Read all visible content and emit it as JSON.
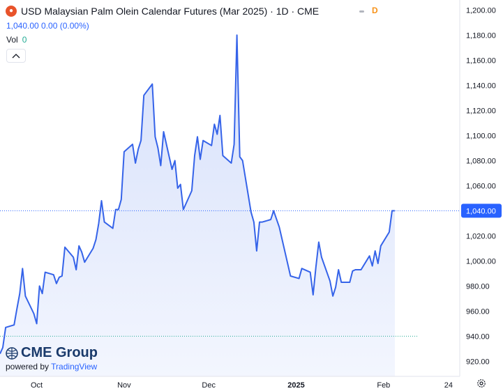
{
  "header": {
    "title": "USD Malaysian Palm Olein Calendar Futures (Mar 2025) · 1D · CME",
    "quote": "1,040.00  0.00 (0.00%)",
    "badge": "D",
    "vol_label": "Vol",
    "vol_value": "0"
  },
  "branding": {
    "name": "CME Group",
    "powered_by": "powered by",
    "provider": "TradingView"
  },
  "colors": {
    "line": "#3563e9",
    "fill_top": "#d6e0fb",
    "fill_bottom": "#f3f6fe",
    "price_tag": "#2962ff",
    "ref_line": "#2962ff",
    "base_line": "#22ab94"
  },
  "chart_data": {
    "type": "area",
    "title": "USD Malaysian Palm Olein Calendar Futures (Mar 2025)",
    "x_labels": [
      "Oct",
      "Nov",
      "Dec",
      "2025",
      "Feb",
      "24"
    ],
    "y_ticks": [
      920,
      940,
      960,
      980,
      1000,
      1020,
      1040,
      1060,
      1080,
      1100,
      1120,
      1140,
      1160,
      1180,
      1200
    ],
    "y_tick_labels": [
      "920.00",
      "940.00",
      "960.00",
      "980.00",
      "1,000.00",
      "1,020.00",
      "1,040.00",
      "1,060.00",
      "1,080.00",
      "1,100.00",
      "1,120.00",
      "1,140.00",
      "1,160.00",
      "1,180.00",
      "1,200.00"
    ],
    "ylim": [
      908,
      1208
    ],
    "last_price": 1040,
    "last_price_label": "1,040.00",
    "base_value": 940,
    "x_start": "2024-09-18",
    "x_end": "2025-02-28",
    "series": [
      {
        "values": [
          [
            "2024-09-18",
            926
          ],
          [
            "2024-09-19",
            931
          ],
          [
            "2024-09-20",
            947
          ],
          [
            "2024-09-23",
            949
          ],
          [
            "2024-09-24",
            962
          ],
          [
            "2024-09-25",
            974
          ],
          [
            "2024-09-26",
            994
          ],
          [
            "2024-09-27",
            972
          ],
          [
            "2024-09-30",
            958
          ],
          [
            "2024-10-01",
            950
          ],
          [
            "2024-10-02",
            980
          ],
          [
            "2024-10-03",
            974
          ],
          [
            "2024-10-04",
            991
          ],
          [
            "2024-10-07",
            989
          ],
          [
            "2024-10-08",
            982
          ],
          [
            "2024-10-09",
            987
          ],
          [
            "2024-10-10",
            988
          ],
          [
            "2024-10-11",
            1011
          ],
          [
            "2024-10-14",
            1003
          ],
          [
            "2024-10-15",
            993
          ],
          [
            "2024-10-16",
            1012
          ],
          [
            "2024-10-17",
            1007
          ],
          [
            "2024-10-18",
            999
          ],
          [
            "2024-10-21",
            1010
          ],
          [
            "2024-10-22",
            1017
          ],
          [
            "2024-10-23",
            1030
          ],
          [
            "2024-10-24",
            1048
          ],
          [
            "2024-10-25",
            1031
          ],
          [
            "2024-10-28",
            1026
          ],
          [
            "2024-10-29",
            1041
          ],
          [
            "2024-10-30",
            1041
          ],
          [
            "2024-10-31",
            1049
          ],
          [
            "2024-11-01",
            1087
          ],
          [
            "2024-11-04",
            1093
          ],
          [
            "2024-11-05",
            1078
          ],
          [
            "2024-11-06",
            1089
          ],
          [
            "2024-11-07",
            1096
          ],
          [
            "2024-11-08",
            1132
          ],
          [
            "2024-11-11",
            1141
          ],
          [
            "2024-11-12",
            1099
          ],
          [
            "2024-11-13",
            1090
          ],
          [
            "2024-11-14",
            1076
          ],
          [
            "2024-11-15",
            1103
          ],
          [
            "2024-11-18",
            1073
          ],
          [
            "2024-11-19",
            1080
          ],
          [
            "2024-11-20",
            1058
          ],
          [
            "2024-11-21",
            1061
          ],
          [
            "2024-11-22",
            1041
          ],
          [
            "2024-11-25",
            1056
          ],
          [
            "2024-11-26",
            1084
          ],
          [
            "2024-11-27",
            1099
          ],
          [
            "2024-11-28",
            1081
          ],
          [
            "2024-11-29",
            1096
          ],
          [
            "2024-12-02",
            1092
          ],
          [
            "2024-12-03",
            1109
          ],
          [
            "2024-12-04",
            1101
          ],
          [
            "2024-12-05",
            1116
          ],
          [
            "2024-12-06",
            1084
          ],
          [
            "2024-12-09",
            1078
          ],
          [
            "2024-12-10",
            1093
          ],
          [
            "2024-12-11",
            1180
          ],
          [
            "2024-12-12",
            1083
          ],
          [
            "2024-12-13",
            1080
          ],
          [
            "2024-12-16",
            1039
          ],
          [
            "2024-12-17",
            1031
          ],
          [
            "2024-12-18",
            1008
          ],
          [
            "2024-12-19",
            1031
          ],
          [
            "2024-12-20",
            1031
          ],
          [
            "2024-12-23",
            1033
          ],
          [
            "2024-12-24",
            1040
          ],
          [
            "2024-12-26",
            1027
          ],
          [
            "2024-12-30",
            988
          ],
          [
            "2025-01-02",
            986
          ],
          [
            "2025-01-03",
            994
          ],
          [
            "2025-01-06",
            991
          ],
          [
            "2025-01-07",
            973
          ],
          [
            "2025-01-08",
            995
          ],
          [
            "2025-01-09",
            1015
          ],
          [
            "2025-01-10",
            1003
          ],
          [
            "2025-01-13",
            984
          ],
          [
            "2025-01-14",
            972
          ],
          [
            "2025-01-15",
            979
          ],
          [
            "2025-01-16",
            993
          ],
          [
            "2025-01-17",
            983
          ],
          [
            "2025-01-20",
            983
          ],
          [
            "2025-01-21",
            992
          ],
          [
            "2025-01-22",
            993
          ],
          [
            "2025-01-23",
            993
          ],
          [
            "2025-01-24",
            993
          ],
          [
            "2025-01-27",
            1004
          ],
          [
            "2025-01-28",
            996
          ],
          [
            "2025-01-29",
            1008
          ],
          [
            "2025-01-30",
            998
          ],
          [
            "2025-01-31",
            1012
          ],
          [
            "2025-02-03",
            1023
          ],
          [
            "2025-02-04",
            1040
          ],
          [
            "2025-02-05",
            1040
          ]
        ]
      }
    ],
    "grid": false,
    "legend": "none"
  }
}
